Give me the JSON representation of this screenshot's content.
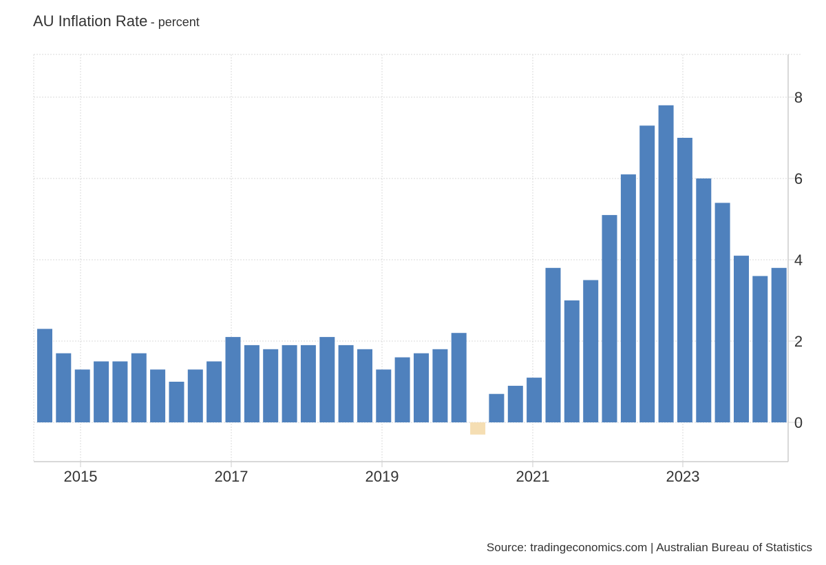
{
  "header": {
    "title": "AU Inflation Rate",
    "subtitle": "- percent"
  },
  "footer": {
    "source": "Source: tradingeconomics.com | Australian Bureau of Statistics"
  },
  "chart_data": {
    "type": "bar",
    "title": "AU Inflation Rate",
    "subtitle": "- percent",
    "xlabel": "",
    "ylabel": "",
    "categories": [
      "2014-Q3",
      "2014-Q4",
      "2015-Q1",
      "2015-Q2",
      "2015-Q3",
      "2015-Q4",
      "2016-Q1",
      "2016-Q2",
      "2016-Q3",
      "2016-Q4",
      "2017-Q1",
      "2017-Q2",
      "2017-Q3",
      "2017-Q4",
      "2018-Q1",
      "2018-Q2",
      "2018-Q3",
      "2018-Q4",
      "2019-Q1",
      "2019-Q2",
      "2019-Q3",
      "2019-Q4",
      "2020-Q1",
      "2020-Q2",
      "2020-Q3",
      "2020-Q4",
      "2021-Q1",
      "2021-Q2",
      "2021-Q3",
      "2021-Q4",
      "2022-Q1",
      "2022-Q2",
      "2022-Q3",
      "2022-Q4",
      "2023-Q1",
      "2023-Q2",
      "2023-Q3",
      "2023-Q4",
      "2024-Q1",
      "2024-Q2"
    ],
    "values": [
      2.3,
      1.7,
      1.3,
      1.5,
      1.5,
      1.7,
      1.3,
      1.0,
      1.3,
      1.5,
      2.1,
      1.9,
      1.8,
      1.9,
      1.9,
      2.1,
      1.9,
      1.8,
      1.3,
      1.6,
      1.7,
      1.8,
      2.2,
      -0.3,
      0.7,
      0.9,
      1.1,
      3.8,
      3.0,
      3.5,
      5.1,
      6.1,
      7.3,
      7.8,
      7.0,
      6.0,
      5.4,
      4.1,
      3.6,
      3.8
    ],
    "x_tick_labels": [
      "2015",
      "2017",
      "2019",
      "2021",
      "2023"
    ],
    "y_ticks": [
      0,
      2,
      4,
      6,
      8
    ],
    "ylim": [
      -0.95,
      9.0
    ],
    "y_axis_position": "right",
    "grid": true,
    "legend": "none",
    "colors": {
      "positive": "#4f81bd",
      "negative": "#f5deb3",
      "grid": "#d9d9d9",
      "axis": "#cccccc",
      "text": "#333333"
    }
  }
}
